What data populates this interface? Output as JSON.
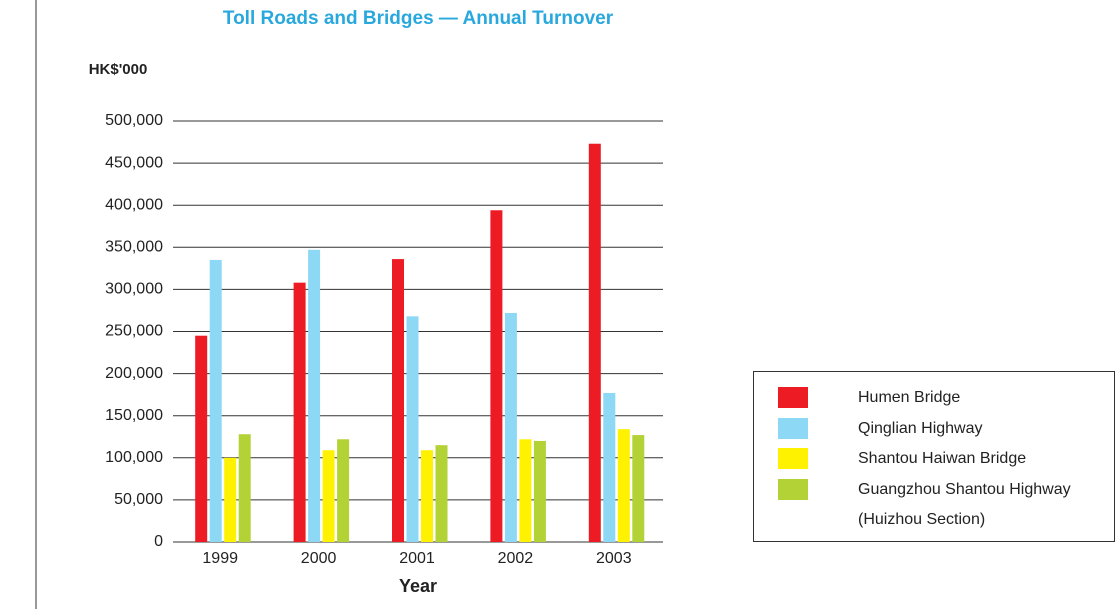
{
  "chart_data": {
    "type": "bar",
    "title": "Toll Roads and Bridges — Annual Turnover",
    "y_axis_label": "HK$'000",
    "x_axis_label": "Year",
    "categories": [
      "1999",
      "2000",
      "2001",
      "2002",
      "2003"
    ],
    "series": [
      {
        "name": "Humen Bridge",
        "color": "#ed1c24",
        "values": [
          245000,
          308000,
          336000,
          394000,
          473000
        ]
      },
      {
        "name": "Qinglian Highway",
        "color": "#8dd8f4",
        "values": [
          335000,
          347000,
          268000,
          272000,
          177000
        ]
      },
      {
        "name": "Shantou Haiwan Bridge",
        "color": "#fff200",
        "values": [
          100000,
          109000,
          109000,
          122000,
          134000
        ]
      },
      {
        "name": "Guangzhou Shantou Highway\n(Huizhou Section)",
        "color": "#b2d235",
        "values": [
          128000,
          122000,
          115000,
          120000,
          127000
        ]
      }
    ],
    "ylim": [
      0,
      500000
    ],
    "yticks": [
      0,
      {
        "value": 50000,
        "label": "50,000"
      },
      {
        "value": 100000,
        "label": "100,000"
      },
      {
        "value": 150000,
        "label": "150,000"
      },
      {
        "value": 200000,
        "label": "200,000"
      },
      {
        "value": 250000,
        "label": "250,000"
      },
      {
        "value": 300000,
        "label": "300,000"
      },
      {
        "value": 350000,
        "label": "350,000"
      },
      {
        "value": 400000,
        "label": "400,000"
      },
      {
        "value": 450000,
        "label": "450,000"
      },
      {
        "value": 500000,
        "label": "500,000"
      }
    ],
    "grid": true,
    "legend": "right"
  }
}
